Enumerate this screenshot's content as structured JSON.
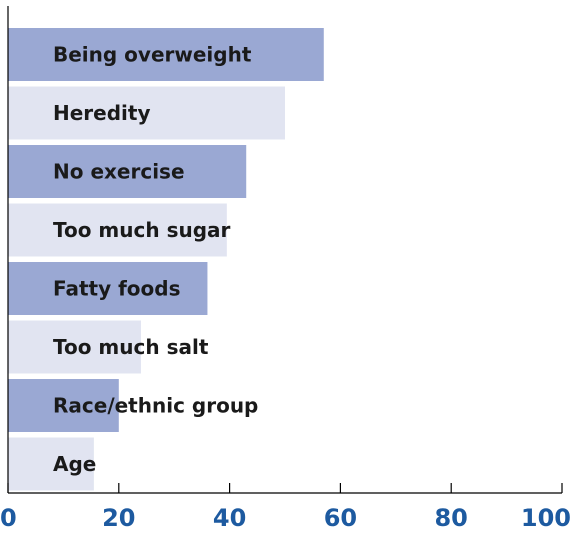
{
  "chart_data": {
    "type": "bar",
    "orientation": "horizontal",
    "categories": [
      "Being overweight",
      "Heredity",
      "No exercise",
      "Too much sugar",
      "Fatty foods",
      "Too much salt",
      "Race/ethnic group",
      "Age"
    ],
    "values": [
      57,
      50,
      43,
      39.5,
      36,
      24,
      20,
      15.5
    ],
    "xlim": [
      0,
      100
    ],
    "xticks": [
      "0",
      "20",
      "40",
      "60",
      "80",
      "100"
    ],
    "title": "",
    "xlabel": "",
    "ylabel": "",
    "grid": false,
    "colors": {
      "bar_dark": "#9aa8d3",
      "bar_light": "#e1e4f1",
      "axis": "#000000",
      "tick_text": "#1d5aa0",
      "label_text": "#1a1a1a"
    }
  }
}
